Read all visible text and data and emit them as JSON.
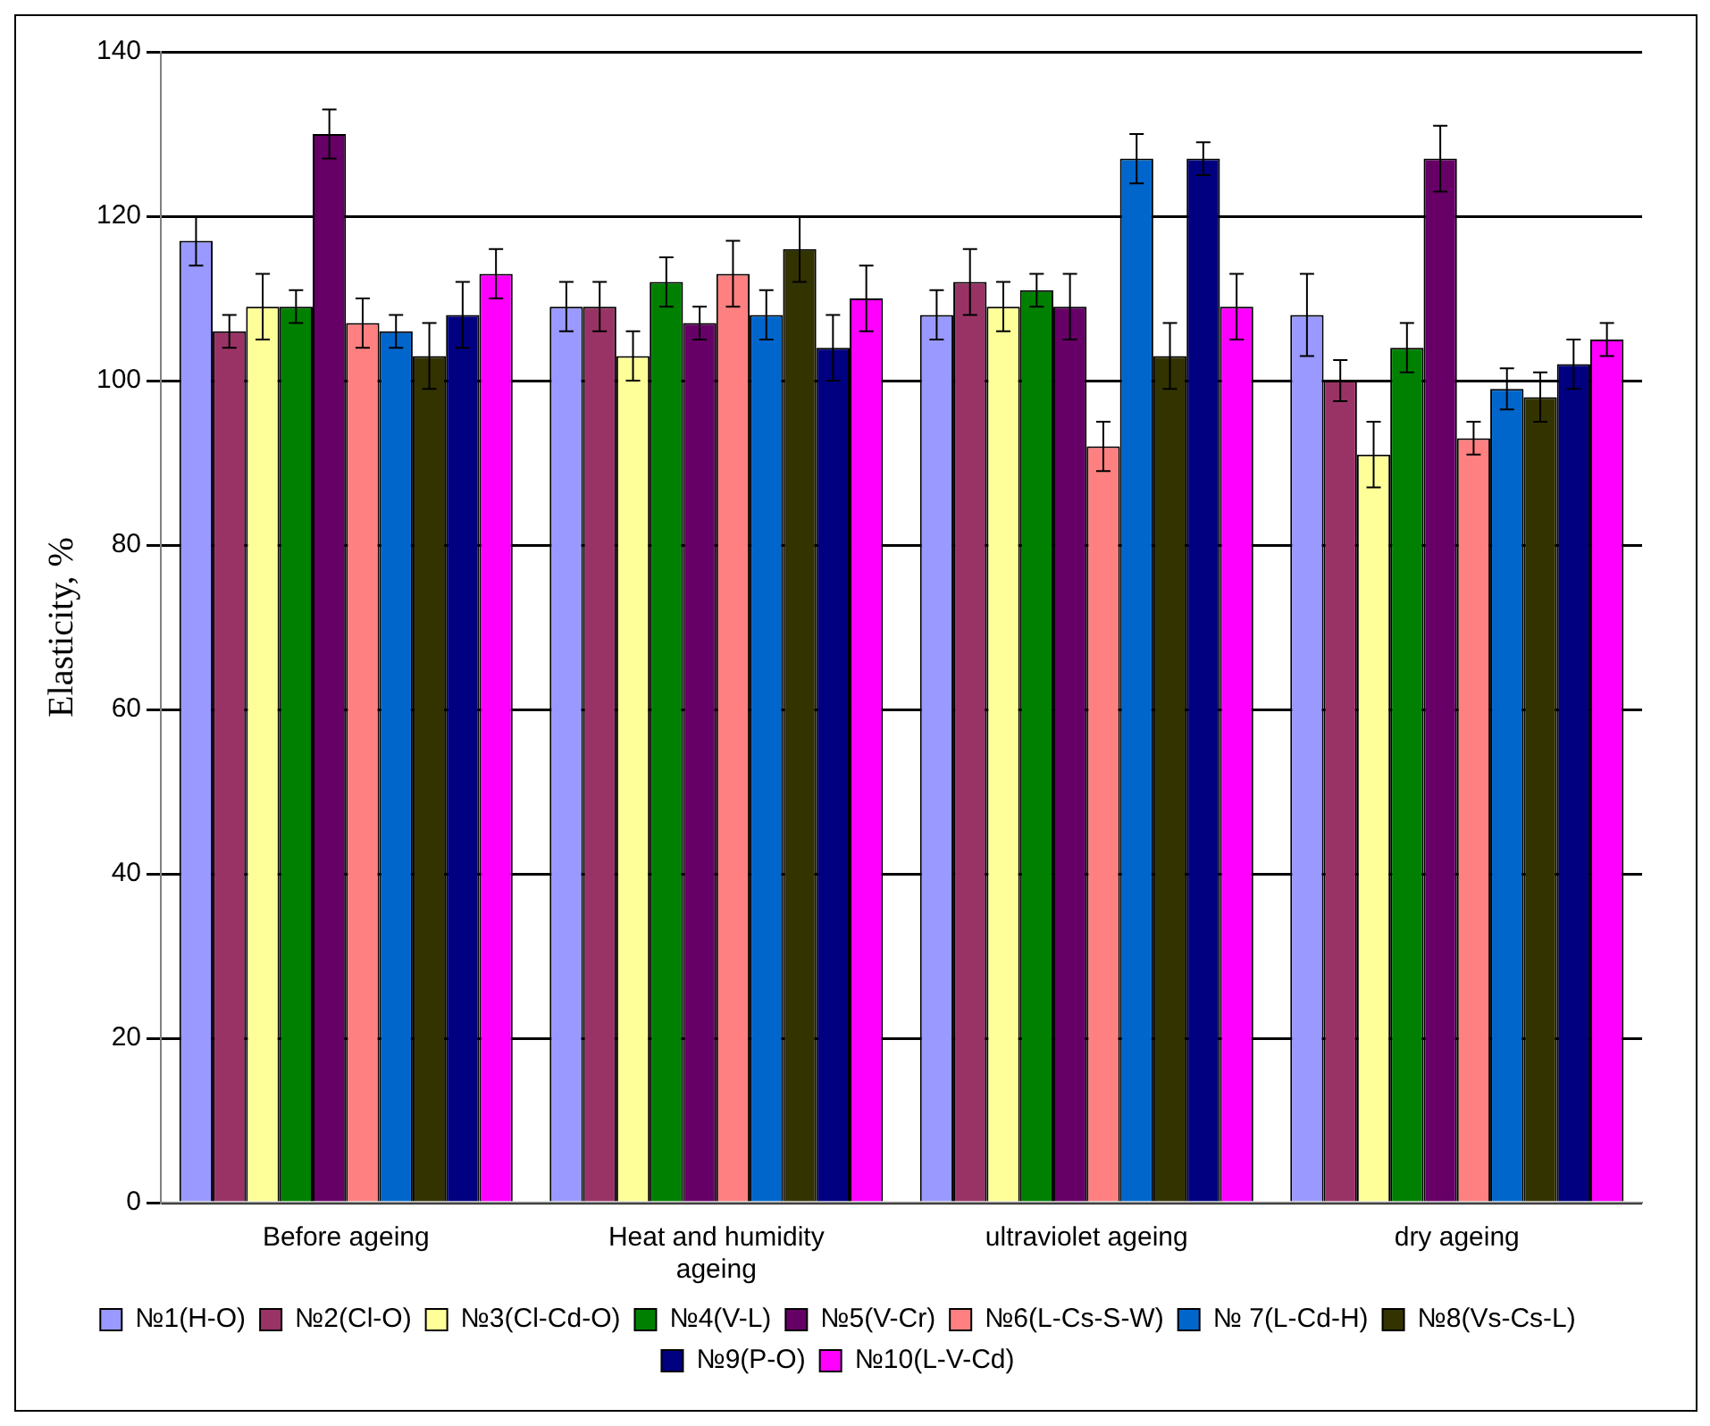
{
  "chart_data": {
    "type": "bar",
    "ylabel": "Elasticity, %",
    "categories": [
      "Before ageing",
      "Heat and humidity ageing",
      "ultraviolet ageing",
      "dry ageing"
    ],
    "series": [
      {
        "name": "№1(H-O)",
        "color": "#9999ff",
        "values": [
          117,
          109,
          108,
          108
        ],
        "errors": [
          3,
          3,
          3,
          5
        ]
      },
      {
        "name": "№2(Cl-O)",
        "color": "#993366",
        "values": [
          106,
          109,
          112,
          100
        ],
        "errors": [
          2,
          3,
          4,
          2.5
        ]
      },
      {
        "name": "№3(Cl-Cd-O)",
        "color": "#ffff99",
        "values": [
          109,
          103,
          109,
          91
        ],
        "errors": [
          4,
          3,
          3,
          4
        ]
      },
      {
        "name": "№4(V-L)",
        "color": "#008000",
        "values": [
          109,
          112,
          111,
          104
        ],
        "errors": [
          2,
          3,
          2,
          3
        ]
      },
      {
        "name": "№5(V-Cr)",
        "color": "#660066",
        "values": [
          130,
          107,
          109,
          127
        ],
        "errors": [
          3,
          2,
          4,
          4
        ]
      },
      {
        "name": "№6(L-Cs-S-W)",
        "color": "#ff8080",
        "values": [
          107,
          113,
          92,
          93
        ],
        "errors": [
          3,
          4,
          3,
          2
        ]
      },
      {
        "name": "№ 7(L-Cd-H)",
        "color": "#0066cc",
        "values": [
          106,
          108,
          127,
          99
        ],
        "errors": [
          2,
          3,
          3,
          2.5
        ]
      },
      {
        "name": "№8(Vs-Cs-L)",
        "color": "#333300",
        "values": [
          103,
          116,
          103,
          98
        ],
        "errors": [
          4,
          4,
          4,
          3
        ]
      },
      {
        "name": "№9(P-O)",
        "color": "#000080",
        "values": [
          108,
          104,
          127,
          102
        ],
        "errors": [
          4,
          4,
          2,
          3
        ]
      },
      {
        "name": "№10(L-V-Cd)",
        "color": "#ff00ff",
        "values": [
          113,
          110,
          109,
          105
        ],
        "errors": [
          3,
          4,
          4,
          2
        ]
      }
    ],
    "ylim": [
      0,
      140
    ],
    "yticks": [
      0,
      20,
      40,
      60,
      80,
      100,
      120,
      140
    ],
    "grid": "y",
    "legend": "bottom"
  }
}
